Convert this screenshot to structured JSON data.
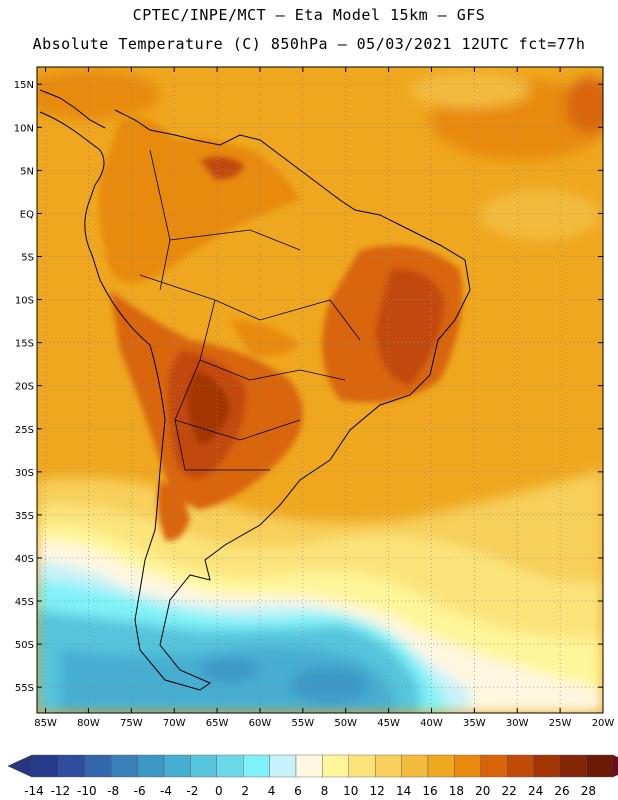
{
  "header": {
    "line1": "CPTEC/INPE/MCT –  Eta Model 15km – GFS",
    "line2": "Absolute Temperature (C) 850hPa – 05/03/2021 12UTC fct=77h"
  },
  "map": {
    "lat_labels": [
      "15N",
      "10N",
      "5N",
      "EQ",
      "5S",
      "10S",
      "15S",
      "20S",
      "25S",
      "30S",
      "35S",
      "40S",
      "45S",
      "50S",
      "55S"
    ],
    "lon_labels": [
      "85W",
      "80W",
      "75W",
      "70W",
      "65W",
      "60W",
      "55W",
      "50W",
      "45W",
      "40W",
      "35W",
      "30W",
      "25W",
      "20W"
    ],
    "lat_range": [
      17,
      -58
    ],
    "lon_range": [
      -86,
      -20
    ],
    "colors": {
      "frame": "#000000",
      "grid": "#8a8a8a",
      "coast": "#000000"
    }
  },
  "colorbar": {
    "labels": [
      "-14",
      "-12",
      "-10",
      "-8",
      "-6",
      "-4",
      "-2",
      "0",
      "2",
      "4",
      "6",
      "8",
      "10",
      "12",
      "14",
      "16",
      "18",
      "20",
      "22",
      "24",
      "26",
      "28"
    ],
    "colors": [
      "#263a8c",
      "#2d4e9e",
      "#3366ad",
      "#3a80bb",
      "#3d98c6",
      "#46aed1",
      "#55c4dc",
      "#6ad8e8",
      "#7ff2f8",
      "#c8f2f9",
      "#fff7e0",
      "#fff59a",
      "#fbe37a",
      "#f7cf5a",
      "#f2bb3c",
      "#efa71f",
      "#e88a10",
      "#d9650a",
      "#c24a07",
      "#a33505",
      "#842506",
      "#6b1a05"
    ],
    "left_arrow": "#29357e",
    "right_arrow": "#6e0a23"
  }
}
